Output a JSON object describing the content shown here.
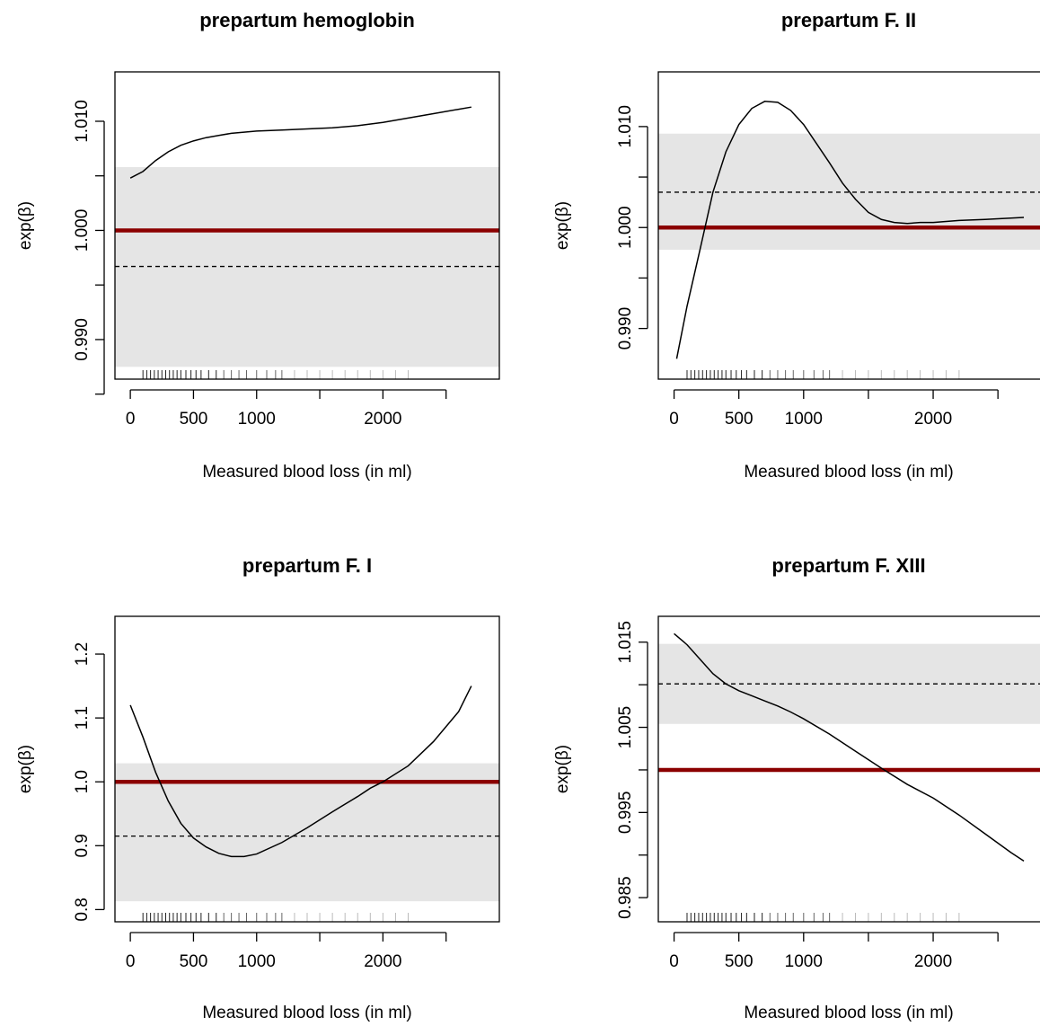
{
  "chart_data": [
    {
      "type": "line",
      "title": "prepartum hemoglobin",
      "xlabel": "Measured blood loss (in ml)",
      "ylabel": "exp(β)",
      "xlim": [
        0,
        2800
      ],
      "ylim": [
        0.9875,
        1.0134
      ],
      "x_ticks": [
        0,
        500,
        1000,
        1500,
        2000,
        2500
      ],
      "x_tick_labels": [
        "0",
        "500",
        "1000",
        "",
        "2000",
        ""
      ],
      "y_ticks": [
        0.985,
        0.99,
        0.995,
        1.0,
        1.005,
        1.01
      ],
      "y_tick_labels": [
        "",
        "0.990",
        "",
        "1.000",
        "",
        "1.010"
      ],
      "reference_line": 1.0,
      "mean_line": 0.9967,
      "ci_band": [
        0.9875,
        1.0058
      ],
      "series": [
        {
          "x": [
            0,
            100,
            200,
            300,
            400,
            500,
            600,
            700,
            800,
            900,
            1000,
            1200,
            1400,
            1600,
            1800,
            2000,
            2200,
            2400,
            2600,
            2700
          ],
          "y": [
            1.0048,
            1.0054,
            1.0064,
            1.0072,
            1.0078,
            1.0082,
            1.0085,
            1.0087,
            1.0089,
            1.009,
            1.0091,
            1.0092,
            1.0093,
            1.0094,
            1.0096,
            1.0099,
            1.0103,
            1.0107,
            1.0111,
            1.0113
          ]
        }
      ],
      "rug_x": [
        100,
        130,
        160,
        190,
        220,
        250,
        280,
        310,
        340,
        370,
        400,
        440,
        480,
        520,
        560,
        620,
        680,
        740,
        800,
        860,
        920,
        1000,
        1080,
        1150,
        1200,
        1300,
        1400,
        1500,
        1600,
        1700,
        1800,
        1900,
        2000,
        2100,
        2200
      ]
    },
    {
      "type": "line",
      "title": "prepartum F. II",
      "xlabel": "Measured blood loss (in ml)",
      "ylabel": "exp(β)",
      "xlim": [
        0,
        2800
      ],
      "ylim": [
        0.9862,
        1.0142
      ],
      "x_ticks": [
        0,
        500,
        1000,
        1500,
        2000,
        2500
      ],
      "x_tick_labels": [
        "0",
        "500",
        "1000",
        "",
        "2000",
        ""
      ],
      "y_ticks": [
        0.99,
        0.995,
        1.0,
        1.005,
        1.01
      ],
      "y_tick_labels": [
        "0.990",
        "",
        "1.000",
        "",
        "1.010"
      ],
      "reference_line": 1.0,
      "mean_line": 1.0035,
      "ci_band": [
        0.9978,
        1.0093
      ],
      "series": [
        {
          "x": [
            20,
            100,
            200,
            300,
            400,
            500,
            600,
            700,
            800,
            900,
            1000,
            1100,
            1200,
            1300,
            1400,
            1500,
            1600,
            1700,
            1800,
            1900,
            2000,
            2200,
            2400,
            2700
          ],
          "y": [
            0.987,
            0.9922,
            0.9978,
            1.0035,
            1.0075,
            1.0102,
            1.0118,
            1.0125,
            1.0124,
            1.0116,
            1.0102,
            1.0083,
            1.0064,
            1.0044,
            1.0028,
            1.0015,
            1.0008,
            1.0005,
            1.0004,
            1.0005,
            1.0005,
            1.0007,
            1.0008,
            1.001
          ]
        }
      ],
      "rug_x": [
        100,
        130,
        160,
        190,
        220,
        250,
        280,
        310,
        340,
        370,
        400,
        440,
        480,
        520,
        560,
        620,
        680,
        740,
        800,
        860,
        920,
        1000,
        1080,
        1150,
        1200,
        1300,
        1400,
        1500,
        1600,
        1700,
        1800,
        1900,
        2000,
        2100,
        2200
      ]
    },
    {
      "type": "line",
      "title": "prepartum F. I",
      "xlabel": "Measured blood loss (in ml)",
      "ylabel": "exp(β)",
      "xlim": [
        0,
        2800
      ],
      "ylim": [
        0.8,
        1.24
      ],
      "x_ticks": [
        0,
        500,
        1000,
        1500,
        2000,
        2500
      ],
      "x_tick_labels": [
        "0",
        "500",
        "1000",
        "",
        "2000",
        ""
      ],
      "y_ticks": [
        0.8,
        0.9,
        1.0,
        1.1,
        1.2
      ],
      "y_tick_labels": [
        "0.8",
        "0.9",
        "1.0",
        "1.1",
        "1.2"
      ],
      "reference_line": 1.0,
      "mean_line": 0.915,
      "ci_band": [
        0.813,
        1.029
      ],
      "series": [
        {
          "x": [
            0,
            100,
            200,
            300,
            400,
            500,
            600,
            700,
            800,
            900,
            1000,
            1200,
            1400,
            1600,
            1800,
            1900,
            2000,
            2200,
            2400,
            2600,
            2700
          ],
          "y": [
            1.12,
            1.07,
            1.015,
            0.97,
            0.935,
            0.912,
            0.898,
            0.888,
            0.883,
            0.883,
            0.887,
            0.905,
            0.928,
            0.953,
            0.977,
            0.99,
            1.0,
            1.025,
            1.063,
            1.11,
            1.15
          ]
        }
      ],
      "rug_x": [
        100,
        130,
        160,
        190,
        220,
        250,
        280,
        310,
        340,
        370,
        400,
        440,
        480,
        520,
        560,
        620,
        680,
        740,
        800,
        860,
        920,
        1000,
        1080,
        1150,
        1200,
        1300,
        1400,
        1500,
        1600,
        1700,
        1800,
        1900,
        2000,
        2100,
        2200
      ]
    },
    {
      "type": "line",
      "title": "prepartum F. XIII",
      "xlabel": "Measured blood loss (in ml)",
      "ylabel": "exp(β)",
      "xlim": [
        0,
        2800
      ],
      "ylim": [
        0.9836,
        1.0166
      ],
      "x_ticks": [
        0,
        500,
        1000,
        1500,
        2000,
        2500
      ],
      "x_tick_labels": [
        "0",
        "500",
        "1000",
        "",
        "2000",
        ""
      ],
      "y_ticks": [
        0.985,
        0.99,
        0.995,
        1.0,
        1.005,
        1.01,
        1.015
      ],
      "y_tick_labels": [
        "0.985",
        "",
        "0.995",
        "",
        "1.005",
        "",
        "1.015"
      ],
      "reference_line": 1.0,
      "mean_line": 1.0101,
      "ci_band": [
        1.0054,
        1.0148
      ],
      "series": [
        {
          "x": [
            0,
            100,
            200,
            300,
            400,
            500,
            600,
            700,
            800,
            900,
            1000,
            1200,
            1400,
            1600,
            1800,
            2000,
            2200,
            2400,
            2600,
            2700
          ],
          "y": [
            1.016,
            1.0147,
            1.013,
            1.0113,
            1.0101,
            1.0093,
            1.0087,
            1.0081,
            1.0075,
            1.0068,
            1.006,
            1.0042,
            1.0022,
            1.0002,
            0.9983,
            0.9967,
            0.9947,
            0.9925,
            0.9903,
            0.9893
          ]
        }
      ],
      "rug_x": [
        100,
        130,
        160,
        190,
        220,
        250,
        280,
        310,
        340,
        370,
        400,
        440,
        480,
        520,
        560,
        620,
        680,
        740,
        800,
        860,
        920,
        1000,
        1080,
        1150,
        1200,
        1300,
        1400,
        1500,
        1600,
        1700,
        1800,
        1900,
        2000,
        2100,
        2200
      ]
    }
  ],
  "colors": {
    "reference_line": "#8b0000",
    "ci_band": "#e5e5e5",
    "curve": "#000000",
    "axis": "#000000"
  }
}
